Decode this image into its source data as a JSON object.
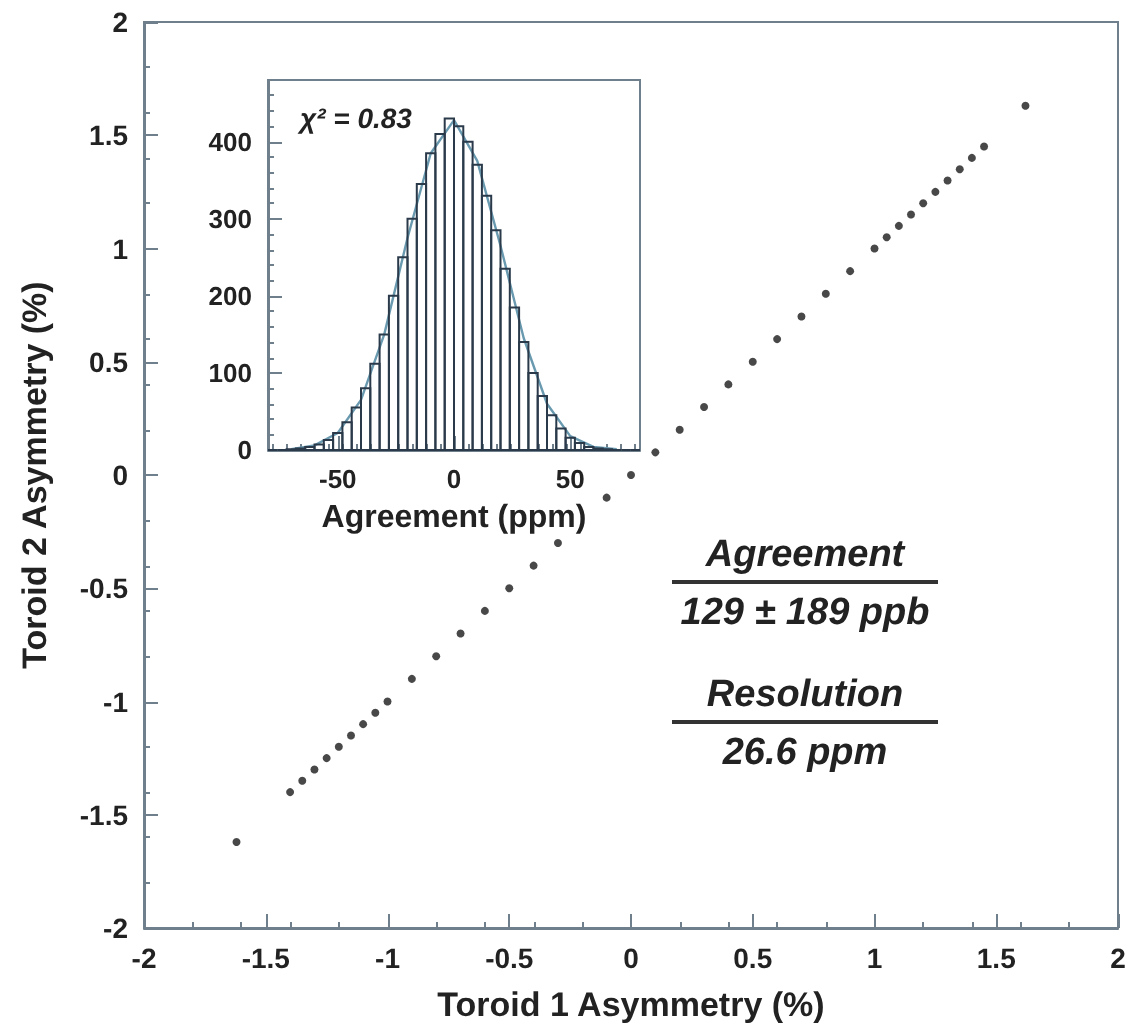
{
  "chart_data": [
    {
      "type": "scatter",
      "xlabel": "Toroid 1 Asymmetry (%)",
      "ylabel": "Toroid 2 Asymmetry (%)",
      "color": "#1a1a1a",
      "marker": "circle",
      "x": [
        -1.62,
        -1.4,
        -1.35,
        -1.3,
        -1.25,
        -1.2,
        -1.15,
        -1.1,
        -1.05,
        -1.0,
        -0.9,
        -0.8,
        -0.7,
        -0.6,
        -0.5,
        -0.4,
        -0.3,
        -0.1,
        0.0,
        0.1,
        0.2,
        0.3,
        0.4,
        0.5,
        0.6,
        0.7,
        0.8,
        0.9,
        1.0,
        1.05,
        1.1,
        1.15,
        1.2,
        1.25,
        1.3,
        1.35,
        1.4,
        1.45,
        1.62
      ],
      "values": [
        -1.62,
        -1.4,
        -1.35,
        -1.3,
        -1.25,
        -1.2,
        -1.15,
        -1.1,
        -1.05,
        -1.0,
        -0.9,
        -0.8,
        -0.7,
        -0.6,
        -0.5,
        -0.4,
        -0.3,
        -0.1,
        0.0,
        0.1,
        0.2,
        0.3,
        0.4,
        0.5,
        0.6,
        0.7,
        0.8,
        0.9,
        1.0,
        1.05,
        1.1,
        1.15,
        1.2,
        1.25,
        1.3,
        1.35,
        1.4,
        1.45,
        1.63
      ],
      "xlim": [
        -2,
        2
      ],
      "ylim": [
        -2,
        2
      ],
      "xticks": [
        -2,
        -1.5,
        -1,
        -0.5,
        0,
        0.5,
        1,
        1.5,
        2
      ],
      "yticks": [
        -2,
        -1.5,
        -1,
        -0.5,
        0,
        0.5,
        1,
        1.5,
        2
      ],
      "annotations": [
        "Agreement",
        "129 ± 189 ppb",
        "Resolution",
        "26.6 ppm"
      ]
    },
    {
      "type": "histogram",
      "xlabel": "Agreement (ppm)",
      "bins": [
        -80,
        -76,
        -72,
        -68,
        -64,
        -60,
        -56,
        -52,
        -48,
        -44,
        -40,
        -36,
        -32,
        -28,
        -24,
        -20,
        -16,
        -12,
        -8,
        -4,
        0,
        4,
        8,
        12,
        16,
        20,
        24,
        28,
        32,
        36,
        40,
        44,
        48,
        52,
        56,
        60,
        64,
        68,
        72,
        76,
        80
      ],
      "series": [
        {
          "type": "histogram",
          "color": "#2a3a4a",
          "values": [
            0,
            0,
            1,
            2,
            4,
            7,
            13,
            22,
            36,
            55,
            80,
            112,
            150,
            200,
            250,
            300,
            345,
            385,
            410,
            430,
            420,
            400,
            370,
            330,
            285,
            235,
            185,
            140,
            100,
            70,
            45,
            28,
            16,
            9,
            4,
            2,
            1,
            0,
            0,
            0
          ]
        },
        {
          "type": "line",
          "color": "#6a9ab0",
          "x": [
            -70,
            -60,
            -50,
            -40,
            -30,
            -20,
            -10,
            0,
            10,
            20,
            30,
            40,
            50,
            60,
            70
          ],
          "values": [
            1,
            6,
            22,
            65,
            150,
            275,
            385,
            428,
            375,
            265,
            145,
            60,
            18,
            4,
            1
          ]
        }
      ],
      "xlim": [
        -80,
        80
      ],
      "ylim": [
        0,
        480
      ],
      "xticks": [
        -50,
        0,
        50
      ],
      "yticks": [
        0,
        100,
        200,
        300,
        400
      ],
      "annotations": [
        "χ² = 0.83"
      ]
    }
  ]
}
